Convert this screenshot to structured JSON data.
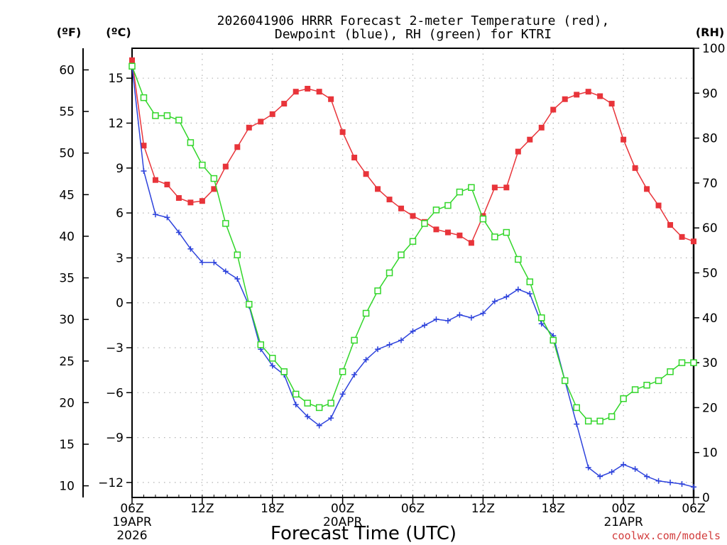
{
  "chart_data": {
    "type": "line",
    "title_line1": "2026041906 HRRR Forecast 2-meter Temperature (red),",
    "title_line2": "Dewpoint (blue), RH (green) for KTRI",
    "xlabel": "Forecast Time (UTC)",
    "credit": "coolwx.com/models",
    "unit_labels": {
      "fahrenheit": "(ºF)",
      "celsius": "(ºC)",
      "rh": "(RH)"
    },
    "hours": [
      0,
      1,
      2,
      3,
      4,
      5,
      6,
      7,
      8,
      9,
      10,
      11,
      12,
      13,
      14,
      15,
      16,
      17,
      18,
      19,
      20,
      21,
      22,
      23,
      24,
      25,
      26,
      27,
      28,
      29,
      30,
      31,
      32,
      33,
      34,
      35,
      36,
      37,
      38,
      39,
      40,
      41,
      42,
      43,
      44,
      45,
      46,
      47,
      48
    ],
    "x_range_hours": [
      0,
      48
    ],
    "x_ticks": [
      {
        "hour": 0,
        "lines": [
          "06Z",
          "19APR",
          "2026"
        ]
      },
      {
        "hour": 6,
        "lines": [
          "12Z"
        ]
      },
      {
        "hour": 12,
        "lines": [
          "18Z"
        ]
      },
      {
        "hour": 18,
        "lines": [
          "00Z",
          "20APR"
        ]
      },
      {
        "hour": 24,
        "lines": [
          "06Z"
        ]
      },
      {
        "hour": 30,
        "lines": [
          "12Z"
        ]
      },
      {
        "hour": 36,
        "lines": [
          "18Z"
        ]
      },
      {
        "hour": 42,
        "lines": [
          "00Z",
          "21APR"
        ]
      },
      {
        "hour": 48,
        "lines": [
          "06Z"
        ]
      }
    ],
    "y_left_celsius": {
      "range": [
        -13,
        17
      ],
      "ticks": [
        -12,
        -9,
        -6,
        -3,
        0,
        3,
        6,
        9,
        12,
        15
      ],
      "tick_labels": [
        "−12",
        "−9",
        "−6",
        "−3",
        "0",
        "3",
        "6",
        "9",
        "12",
        "15"
      ]
    },
    "y_left_fahrenheit": {
      "ticks": [
        10,
        15,
        20,
        25,
        30,
        35,
        40,
        45,
        50,
        55,
        60
      ],
      "tick_labels": [
        "10",
        "15",
        "20",
        "25",
        "30",
        "35",
        "40",
        "45",
        "50",
        "55",
        "60"
      ]
    },
    "y_right_rh": {
      "range": [
        0,
        100
      ],
      "ticks": [
        0,
        10,
        20,
        30,
        40,
        50,
        60,
        70,
        80,
        90,
        100
      ],
      "tick_labels": [
        "0",
        "10",
        "20",
        "30",
        "40",
        "50",
        "60",
        "70",
        "80",
        "90",
        "100"
      ]
    },
    "grid": true,
    "series": [
      {
        "name": "Temperature",
        "unit": "C",
        "color": "#e8343a",
        "marker": "filled-square",
        "values": [
          16.2,
          10.5,
          8.2,
          7.9,
          7.0,
          6.7,
          6.8,
          7.6,
          9.1,
          10.4,
          11.7,
          12.1,
          12.6,
          13.3,
          14.1,
          14.3,
          14.1,
          13.6,
          11.4,
          9.7,
          8.6,
          7.6,
          6.9,
          6.3,
          5.8,
          5.4,
          4.9,
          4.7,
          4.5,
          4.0,
          5.8,
          7.7,
          7.7,
          10.1,
          10.9,
          11.7,
          12.9,
          13.6,
          13.9,
          14.1,
          13.8,
          13.3,
          10.9,
          9.0,
          7.6,
          6.5,
          5.2,
          4.4,
          4.1
        ]
      },
      {
        "name": "Dewpoint",
        "unit": "C",
        "color": "#2e43dc",
        "marker": "plus",
        "values": [
          15.8,
          8.8,
          5.9,
          5.7,
          4.7,
          3.6,
          2.7,
          2.7,
          2.1,
          1.6,
          -0.2,
          -3.1,
          -4.2,
          -4.8,
          -6.8,
          -7.6,
          -8.2,
          -7.7,
          -6.1,
          -4.8,
          -3.8,
          -3.1,
          -2.8,
          -2.5,
          -1.9,
          -1.5,
          -1.1,
          -1.2,
          -0.8,
          -1.0,
          -0.7,
          0.1,
          0.4,
          0.9,
          0.6,
          -1.4,
          -2.2,
          -5.2,
          -8.1,
          -11.0,
          -11.6,
          -11.3,
          -10.8,
          -11.1,
          -11.6,
          -11.9,
          -12.0,
          -12.1,
          -12.3
        ]
      },
      {
        "name": "RH",
        "unit": "%",
        "color": "#32d62a",
        "marker": "open-square",
        "values": [
          96,
          89,
          85,
          85,
          84,
          79,
          74,
          71,
          61,
          54,
          43,
          34,
          31,
          28,
          23,
          21,
          20,
          21,
          28,
          35,
          41,
          46,
          50,
          54,
          57,
          61,
          64,
          65,
          68,
          69,
          62,
          58,
          59,
          53,
          48,
          40,
          35,
          26,
          20,
          17,
          17,
          18,
          22,
          24,
          25,
          26,
          28,
          30,
          30
        ]
      }
    ]
  }
}
